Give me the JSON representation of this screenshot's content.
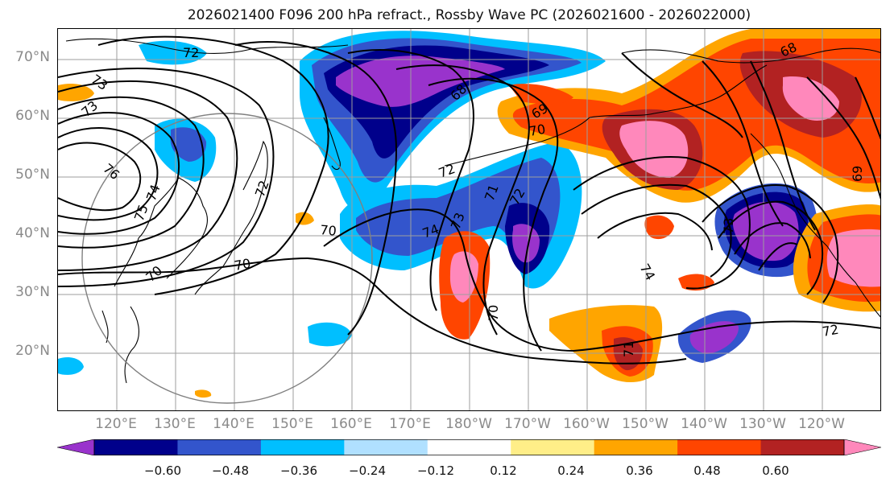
{
  "title": "2026021400 F096 200 hPa refract., Rossby Wave PC (2026021600 - 2026022000)",
  "lat_labels": [
    "70°N",
    "60°N",
    "50°N",
    "40°N",
    "30°N",
    "20°N"
  ],
  "lon_labels": [
    "120°E",
    "130°E",
    "140°E",
    "150°E",
    "160°E",
    "170°E",
    "180°W",
    "170°W",
    "160°W",
    "150°W",
    "140°W",
    "130°W",
    "120°W"
  ],
  "colorbar": {
    "ticks": [
      "−0.60",
      "−0.48",
      "−0.36",
      "−0.24",
      "−0.12",
      "0.12",
      "0.24",
      "0.36",
      "0.48",
      "0.60"
    ],
    "colors": [
      "#9933cc",
      "#00008b",
      "#3355cc",
      "#00bfff",
      "#b0e0ff",
      "#ffffff",
      "#ffee88",
      "#ffa500",
      "#ff4500",
      "#b22222",
      "#ff88bb"
    ]
  },
  "contour_labels": [
    "73",
    "73",
    "72",
    "76",
    "74",
    "75",
    "72",
    "70",
    "70",
    "70",
    "72",
    "74",
    "73",
    "71",
    "68",
    "69",
    "70",
    "68",
    "69",
    "74",
    "72",
    "73",
    "70",
    "71",
    "72"
  ]
}
